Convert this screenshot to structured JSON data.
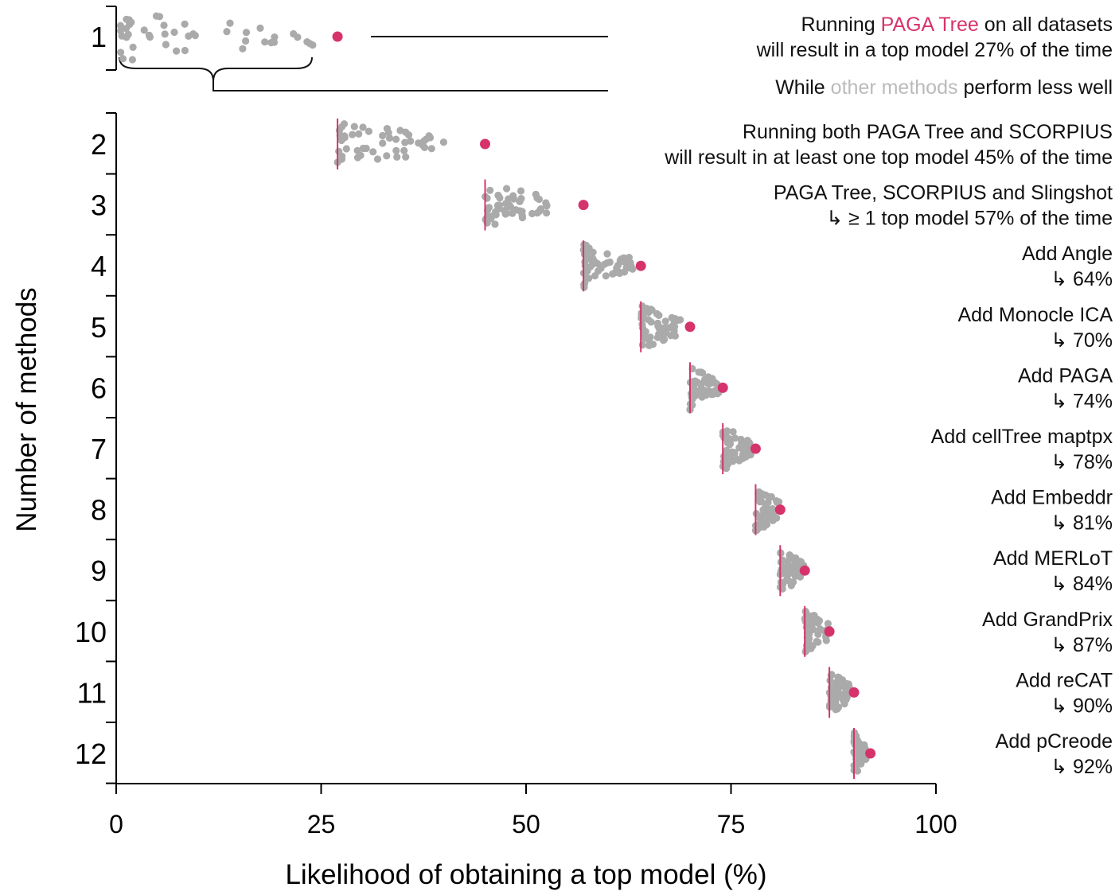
{
  "chart_data": {
    "type": "scatter",
    "subtype": "beeswarm",
    "xlabel": "Likelihood of obtaining a top model (%)",
    "ylabel": "Number of methods",
    "xlim": [
      0,
      100
    ],
    "xticks": [
      0,
      25,
      50,
      75,
      100
    ],
    "legend": "none",
    "grid": false,
    "colors": {
      "highlight": "#d6336c",
      "other": "#aaaaaa",
      "axis": "#000000"
    },
    "rows": [
      {
        "n": 1,
        "best": 27,
        "min": 0.5,
        "max": 24,
        "annotation": [
          [
            {
              "text": "Running ",
              "color": "#111111"
            },
            {
              "text": "PAGA Tree",
              "color": "#d6336c"
            },
            {
              "text": " on all datasets",
              "color": "#111111"
            }
          ],
          [
            {
              "text": "will result in a top model 27% of the time",
              "color": "#111111"
            }
          ]
        ],
        "annotation2": [
          [
            {
              "text": "While ",
              "color": "#111111"
            },
            {
              "text": "other methods",
              "color": "#bbbbbb"
            },
            {
              "text": " perform less well",
              "color": "#111111"
            }
          ]
        ]
      },
      {
        "n": 2,
        "best": 45,
        "min": 27,
        "max": 40,
        "annotation": [
          [
            {
              "text": "Running both PAGA Tree  and SCORPIUS",
              "color": "#111111"
            }
          ],
          [
            {
              "text": "will result in at least one top model 45% of the time",
              "color": "#111111"
            }
          ]
        ]
      },
      {
        "n": 3,
        "best": 57,
        "min": 45,
        "max": 53,
        "annotation": [
          [
            {
              "text": "PAGA Tree, SCORPIUS and Slingshot",
              "color": "#111111"
            }
          ],
          [
            {
              "text": "↳ ≥ 1 top model 57% of the time",
              "color": "#111111"
            }
          ]
        ]
      },
      {
        "n": 4,
        "best": 64,
        "min": 57,
        "max": 63,
        "annotation": [
          [
            {
              "text": "Add Angle",
              "color": "#111111"
            }
          ],
          [
            {
              "text": "↳ 64%",
              "color": "#111111"
            }
          ]
        ]
      },
      {
        "n": 5,
        "best": 70,
        "min": 64,
        "max": 69,
        "annotation": [
          [
            {
              "text": "Add Monocle ICA",
              "color": "#111111"
            }
          ],
          [
            {
              "text": "↳ 70%",
              "color": "#111111"
            }
          ]
        ]
      },
      {
        "n": 6,
        "best": 74,
        "min": 70,
        "max": 73.5,
        "annotation": [
          [
            {
              "text": "Add PAGA",
              "color": "#111111"
            }
          ],
          [
            {
              "text": "↳ 74%",
              "color": "#111111"
            }
          ]
        ]
      },
      {
        "n": 7,
        "best": 78,
        "min": 74,
        "max": 77.5,
        "annotation": [
          [
            {
              "text": "Add cellTree maptpx",
              "color": "#111111"
            }
          ],
          [
            {
              "text": "↳ 78%",
              "color": "#111111"
            }
          ]
        ]
      },
      {
        "n": 8,
        "best": 81,
        "min": 78,
        "max": 81,
        "annotation": [
          [
            {
              "text": "Add Embeddr",
              "color": "#111111"
            }
          ],
          [
            {
              "text": "↳ 81%",
              "color": "#111111"
            }
          ]
        ]
      },
      {
        "n": 9,
        "best": 84,
        "min": 81,
        "max": 84,
        "annotation": [
          [
            {
              "text": "Add MERLoT",
              "color": "#111111"
            }
          ],
          [
            {
              "text": "↳ 84%",
              "color": "#111111"
            }
          ]
        ]
      },
      {
        "n": 10,
        "best": 87,
        "min": 84,
        "max": 87,
        "annotation": [
          [
            {
              "text": "Add GrandPrix",
              "color": "#111111"
            }
          ],
          [
            {
              "text": "↳ 87%",
              "color": "#111111"
            }
          ]
        ]
      },
      {
        "n": 11,
        "best": 90,
        "min": 87,
        "max": 89.5,
        "annotation": [
          [
            {
              "text": "Add reCAT",
              "color": "#111111"
            }
          ],
          [
            {
              "text": "↳ 90%",
              "color": "#111111"
            }
          ]
        ]
      },
      {
        "n": 12,
        "best": 92,
        "min": 90,
        "max": 91.5,
        "annotation": [
          [
            {
              "text": "Add pCreode",
              "color": "#111111"
            }
          ],
          [
            {
              "text": "↳ 92%",
              "color": "#111111"
            }
          ]
        ]
      }
    ]
  }
}
